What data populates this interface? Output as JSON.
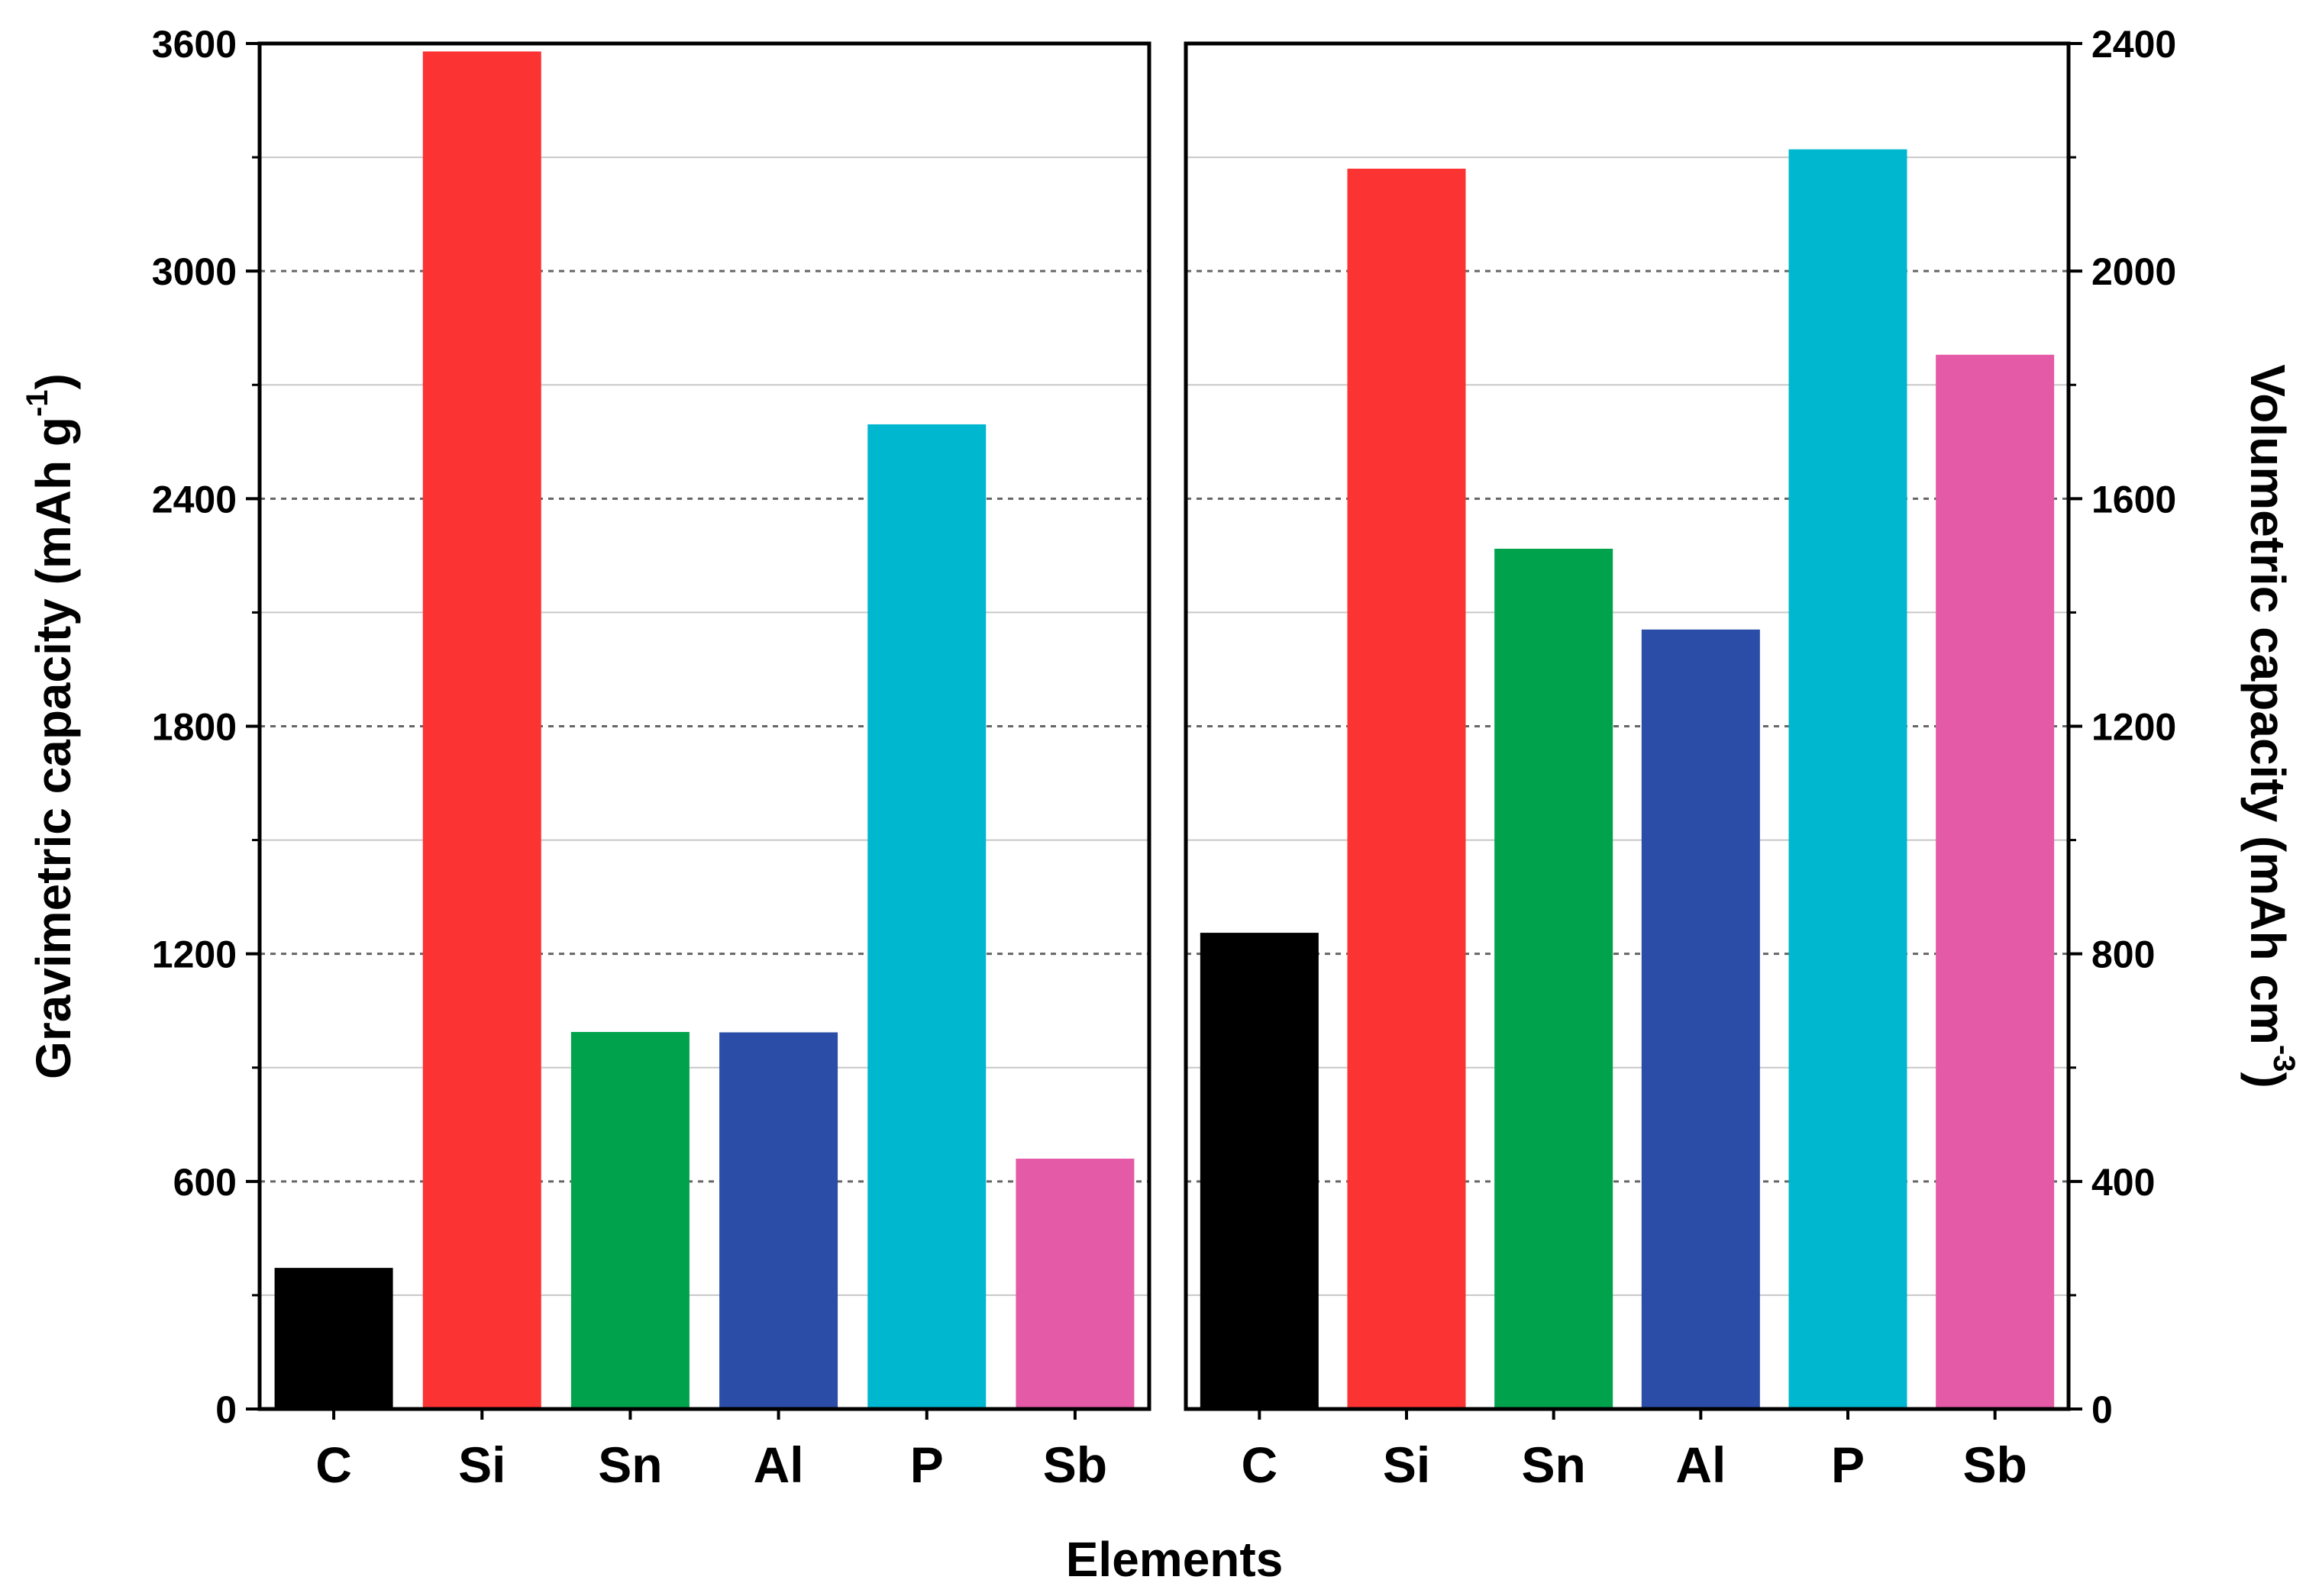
{
  "chart_data": [
    {
      "type": "bar",
      "categories": [
        "C",
        "Si",
        "Sn",
        "Al",
        "P",
        "Sb"
      ],
      "values": [
        372,
        3579,
        994,
        993,
        2596,
        660
      ],
      "colors": [
        "#000000",
        "#fb3333",
        "#00a34c",
        "#2b4da8",
        "#00b7d0",
        "#e55aa7"
      ],
      "ylabel": "Gravimetric capacity (mAh g",
      "ylabel_superscript": "-1",
      "ylabel_suffix": ")",
      "ylim": [
        0,
        3600
      ],
      "yticks": [
        "0",
        "600",
        "1200",
        "1800",
        "2400",
        "3000",
        "3600"
      ],
      "grid": true,
      "axis_side": "left"
    },
    {
      "type": "bar",
      "categories": [
        "C",
        "Si",
        "Sn",
        "Al",
        "P",
        "Sb"
      ],
      "values": [
        837,
        2180,
        1512,
        1370,
        2214,
        1853
      ],
      "colors": [
        "#000000",
        "#fb3333",
        "#00a34c",
        "#2b4da8",
        "#00b7d0",
        "#e55aa7"
      ],
      "ylabel": "Volumetric capacity (mAh cm",
      "ylabel_superscript": "-3",
      "ylabel_suffix": ")",
      "ylim": [
        0,
        2400
      ],
      "yticks": [
        "0",
        "400",
        "800",
        "1200",
        "1600",
        "2000",
        "2400"
      ],
      "grid": true,
      "axis_side": "right"
    }
  ],
  "xlabel": "Elements"
}
